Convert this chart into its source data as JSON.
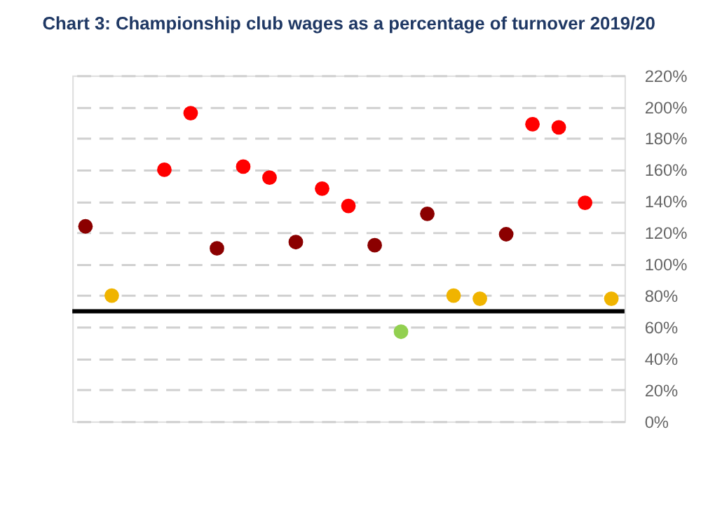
{
  "chart_data": {
    "type": "scatter",
    "title": "Chart 3: Championship club wages as a percentage of turnover 2019/20",
    "categories": [
      null,
      null,
      null,
      null,
      null,
      null,
      null,
      null,
      null,
      null,
      null,
      null,
      null,
      null,
      null,
      null,
      null,
      null,
      null,
      null,
      null
    ],
    "values": [
      124,
      80,
      null,
      160,
      196,
      110,
      162,
      155,
      114,
      148,
      137,
      112,
      57,
      132,
      80,
      78,
      119,
      189,
      187,
      139,
      78
    ],
    "colors": [
      "#8b0000",
      "#f0b400",
      null,
      "#ff0000",
      "#ff0000",
      "#8b0000",
      "#ff0000",
      "#ff0000",
      "#8b0000",
      "#ff0000",
      "#ff0000",
      "#8b0000",
      "#92d050",
      "#8b0000",
      "#f0b400",
      "#f0b400",
      "#8b0000",
      "#ff0000",
      "#ff0000",
      "#ff0000",
      "#f0b400"
    ],
    "ylim": [
      0,
      220
    ],
    "yticks": [
      {
        "value": 0,
        "label": "0%"
      },
      {
        "value": 20,
        "label": "20%"
      },
      {
        "value": 40,
        "label": "40%"
      },
      {
        "value": 60,
        "label": "60%"
      },
      {
        "value": 80,
        "label": "80%"
      },
      {
        "value": 100,
        "label": "100%"
      },
      {
        "value": 120,
        "label": "120%"
      },
      {
        "value": 140,
        "label": "140%"
      },
      {
        "value": 160,
        "label": "160%"
      },
      {
        "value": 180,
        "label": "180%"
      },
      {
        "value": 200,
        "label": "200%"
      },
      {
        "value": 220,
        "label": "220%"
      }
    ],
    "ref_lines": [
      {
        "axis": "y",
        "value": 70,
        "color": "#000000",
        "line_style": "solid"
      }
    ],
    "grid": "y",
    "marker": "circle",
    "tick_labels": "y",
    "legend": false
  }
}
